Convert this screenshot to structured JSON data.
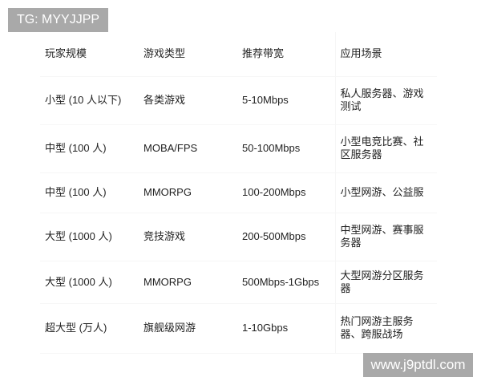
{
  "watermarks": {
    "top_left": "TG: MYYJJPP",
    "bottom_right": "www.j9ptdl.com"
  },
  "table": {
    "headers": [
      "玩家规模",
      "游戏类型",
      "推荐带宽",
      "应用场景"
    ],
    "rows": [
      [
        "小型 (10 人以下)",
        "各类游戏",
        "5-10Mbps",
        "私人服务器、游戏测试"
      ],
      [
        "中型 (100 人)",
        "MOBA/FPS",
        "50-100Mbps",
        "小型电竞比赛、社区服务器"
      ],
      [
        "中型 (100 人)",
        "MMORPG",
        "100-200Mbps",
        "小型网游、公益服"
      ],
      [
        "大型 (1000 人)",
        "竞技游戏",
        "200-500Mbps",
        "中型网游、赛事服务器"
      ],
      [
        "大型 (1000 人)",
        "MMORPG",
        "500Mbps-1Gbps",
        "大型网游分区服务器"
      ],
      [
        "超大型 (万人)",
        "旗舰级网游",
        "1-10Gbps",
        "热门网游主服务器、跨服战场"
      ]
    ]
  }
}
